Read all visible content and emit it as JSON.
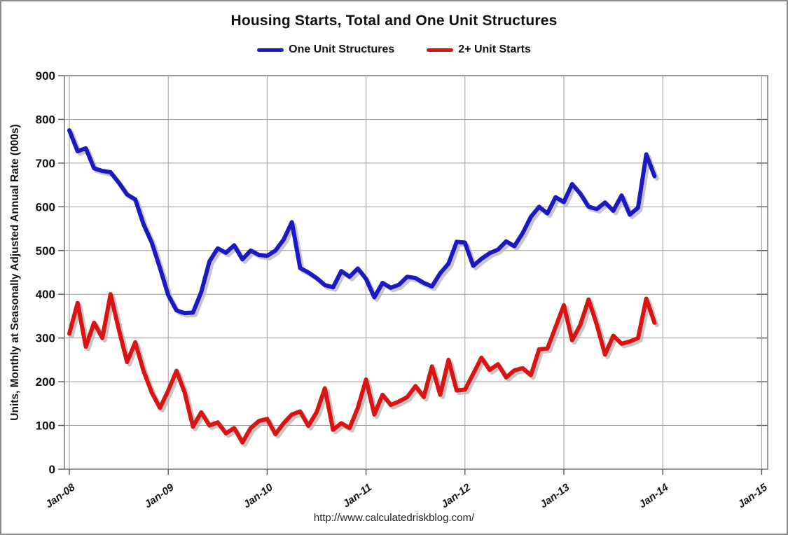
{
  "header": {
    "title": "Housing Starts, Total and One Unit Structures"
  },
  "footer": {
    "url_text": "http://www.calculatedriskblog.com/"
  },
  "chart_data": {
    "type": "line",
    "title": "Housing Starts, Total and One Unit Structures",
    "ylabel": "Units, Monthly at Seasonally Adjusted Annual Rate (000s)",
    "xlabel": "",
    "ylim": [
      0,
      900
    ],
    "y_ticks": [
      0,
      100,
      200,
      300,
      400,
      500,
      600,
      700,
      800,
      900
    ],
    "x_tick_labels": [
      "Jan-08",
      "Jan-09",
      "Jan-10",
      "Jan-11",
      "Jan-12",
      "Jan-13",
      "Jan-14",
      "Jan-15"
    ],
    "x_axis_span_months": 84,
    "frequency": "monthly",
    "data_start": "Jan-2008",
    "data_end": "Dec-2013",
    "grid": true,
    "legend_position": "top",
    "series": [
      {
        "name": "One Unit Structures",
        "color": "#1b1ac0",
        "values": [
          775,
          727,
          734,
          688,
          682,
          679,
          655,
          628,
          617,
          560,
          518,
          460,
          398,
          363,
          357,
          358,
          405,
          475,
          505,
          495,
          512,
          480,
          500,
          490,
          488,
          500,
          525,
          565,
          460,
          450,
          437,
          421,
          416,
          453,
          440,
          459,
          435,
          393,
          426,
          415,
          422,
          440,
          437,
          426,
          418,
          448,
          470,
          520,
          518,
          465,
          481,
          494,
          502,
          521,
          510,
          540,
          577,
          600,
          585,
          622,
          611,
          652,
          630,
          600,
          595,
          610,
          591,
          626,
          582,
          598,
          720,
          670
        ]
      },
      {
        "name": "2+ Unit Starts",
        "color": "#d81414",
        "values": [
          310,
          380,
          280,
          335,
          300,
          400,
          320,
          245,
          290,
          225,
          175,
          140,
          180,
          225,
          175,
          97,
          130,
          100,
          107,
          82,
          94,
          61,
          94,
          110,
          115,
          80,
          105,
          125,
          132,
          99,
          130,
          185,
          90,
          105,
          94,
          140,
          205,
          125,
          170,
          147,
          155,
          165,
          190,
          165,
          235,
          170,
          250,
          180,
          182,
          218,
          255,
          227,
          240,
          210,
          226,
          231,
          215,
          274,
          276,
          325,
          375,
          295,
          330,
          388,
          330,
          262,
          305,
          287,
          292,
          300,
          390,
          335
        ]
      }
    ]
  }
}
